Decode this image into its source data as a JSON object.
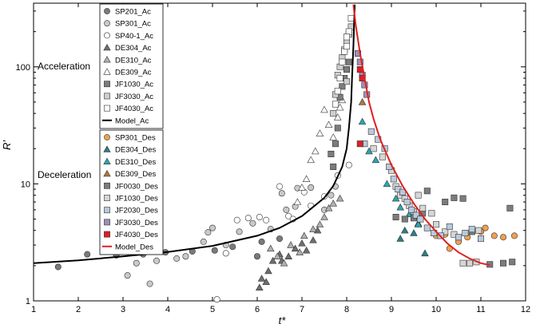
{
  "chart_data": {
    "type": "scatter",
    "title": "",
    "xlabel": "t*",
    "ylabel": "R'",
    "xlim": [
      1,
      12
    ],
    "ylim": [
      1,
      350
    ],
    "yscale": "log",
    "xticks": [
      1,
      2,
      3,
      4,
      5,
      6,
      7,
      8,
      9,
      10,
      11,
      12
    ],
    "yticks": [
      1,
      10,
      100
    ],
    "annotations": [
      "Acceleration",
      "Deceleration"
    ],
    "legend_position": "top-left",
    "legend_groups": [
      [
        "SP201_Ac",
        "SP301_Ac",
        "SP40-1_Ac",
        "DE304_Ac",
        "DE310_Ac",
        "DE309_Ac",
        "JF1030_Ac",
        "JF3030_Ac",
        "JF4030_Ac",
        "Model_Ac"
      ],
      [
        "SP301_Des",
        "DE304_Des",
        "DE310_Des",
        "DE309_Des",
        "JF0030_Des",
        "JF1030_Des",
        "JF2030_Des",
        "JF3030_Des",
        "JF4030_Des",
        "Model_Des"
      ]
    ],
    "series": [
      {
        "name": "SP201_Ac",
        "marker": "circle",
        "color": "#7a7a7a",
        "points": [
          [
            1.55,
            1.95
          ],
          [
            2.2,
            2.5
          ],
          [
            2.85,
            2.45
          ],
          [
            3.45,
            2.5
          ],
          [
            3.95,
            2.6
          ],
          [
            4.55,
            2.65
          ],
          [
            5.05,
            2.7
          ],
          [
            5.45,
            2.9
          ],
          [
            6.0,
            2.4
          ],
          [
            6.1,
            3.2
          ],
          [
            6.5,
            3.4
          ]
        ]
      },
      {
        "name": "SP301_Ac",
        "marker": "circle",
        "color": "#c9c9c9",
        "points": [
          [
            3.1,
            1.65
          ],
          [
            3.3,
            2.1
          ],
          [
            3.6,
            1.4
          ],
          [
            3.75,
            2.2
          ],
          [
            4.2,
            2.3
          ],
          [
            4.4,
            2.4
          ],
          [
            4.8,
            3.2
          ],
          [
            4.9,
            3.85
          ],
          [
            5.0,
            4.2
          ],
          [
            5.3,
            3.0
          ],
          [
            5.6,
            3.9
          ],
          [
            5.9,
            4.6
          ],
          [
            6.3,
            4.1
          ],
          [
            6.55,
            8.3
          ],
          [
            6.65,
            6.0
          ],
          [
            6.85,
            6.4
          ],
          [
            6.9,
            9.2
          ],
          [
            7.2,
            9.3
          ],
          [
            7.5,
            6.0
          ],
          [
            7.65,
            8.0
          ],
          [
            7.75,
            9.5
          ]
        ]
      },
      {
        "name": "SP40-1_Ac",
        "marker": "circle",
        "color": "#ffffff",
        "points": [
          [
            5.1,
            1.03
          ],
          [
            5.3,
            2.55
          ],
          [
            5.55,
            4.9
          ],
          [
            5.8,
            5.1
          ],
          [
            6.05,
            5.2
          ],
          [
            6.2,
            4.9
          ],
          [
            6.5,
            9.5
          ],
          [
            6.7,
            5.3
          ],
          [
            6.8,
            5.0
          ],
          [
            7.05,
            8.5
          ],
          [
            7.2,
            6.5
          ],
          [
            7.5,
            7.8
          ],
          [
            7.8,
            11.8
          ],
          [
            8.05,
            14.5
          ]
        ]
      },
      {
        "name": "DE304_Ac",
        "marker": "triangle",
        "color": "#6e6e6e",
        "points": [
          [
            6.05,
            1.3
          ],
          [
            6.1,
            1.55
          ],
          [
            6.2,
            1.45
          ],
          [
            6.25,
            1.8
          ],
          [
            6.35,
            2.2
          ],
          [
            6.5,
            2.5
          ],
          [
            6.55,
            2.2
          ],
          [
            6.7,
            2.4
          ],
          [
            6.85,
            2.8
          ],
          [
            7.0,
            3.1
          ],
          [
            7.1,
            2.7
          ],
          [
            7.25,
            3.3
          ],
          [
            7.35,
            4.0
          ]
        ]
      },
      {
        "name": "DE310_Ac",
        "marker": "triangle",
        "color": "#b0b0b0",
        "points": [
          [
            6.3,
            2.8
          ],
          [
            6.45,
            2.4
          ],
          [
            6.6,
            2.1
          ],
          [
            6.75,
            3.0
          ],
          [
            6.95,
            2.6
          ],
          [
            7.05,
            3.6
          ],
          [
            7.25,
            4.1
          ],
          [
            7.4,
            4.5
          ],
          [
            7.5,
            5.2
          ],
          [
            7.6,
            6.2
          ],
          [
            7.7,
            6.8
          ],
          [
            7.85,
            7.5
          ]
        ]
      },
      {
        "name": "DE309_Ac",
        "marker": "triangle",
        "color": "#ffffff",
        "points": [
          [
            6.9,
            7.0
          ],
          [
            7.0,
            9.3
          ],
          [
            7.1,
            11.0
          ],
          [
            7.2,
            16.0
          ],
          [
            7.3,
            19.0
          ],
          [
            7.4,
            27.0
          ],
          [
            7.5,
            43.0
          ],
          [
            7.6,
            32.0
          ],
          [
            7.7,
            25.0
          ],
          [
            7.8,
            37.0
          ],
          [
            7.85,
            45.0
          ],
          [
            7.9,
            52.0
          ]
        ]
      },
      {
        "name": "JF1030_Ac",
        "marker": "square",
        "color": "#7c7c7c",
        "points": [
          [
            7.65,
            18.0
          ],
          [
            7.7,
            14.0
          ],
          [
            7.75,
            22.0
          ],
          [
            7.8,
            30.0
          ],
          [
            7.85,
            55.0
          ],
          [
            7.9,
            68.0
          ],
          [
            7.95,
            80.0
          ],
          [
            8.0,
            95.0
          ],
          [
            8.05,
            110.0
          ]
        ]
      },
      {
        "name": "JF3030_Ac",
        "marker": "square",
        "color": "#cfcfcf",
        "points": [
          [
            7.7,
            40.0
          ],
          [
            7.75,
            58.0
          ],
          [
            7.8,
            85.0
          ],
          [
            7.85,
            100.0
          ],
          [
            7.9,
            120.0
          ],
          [
            7.95,
            140.0
          ],
          [
            8.0,
            165.0
          ],
          [
            8.05,
            190.0
          ],
          [
            8.1,
            220.0
          ],
          [
            8.0,
            75.0
          ]
        ]
      },
      {
        "name": "JF4030_Ac",
        "marker": "square",
        "color": "#ffffff",
        "points": [
          [
            7.75,
            48.0
          ],
          [
            7.8,
            62.0
          ],
          [
            7.85,
            80.0
          ],
          [
            7.9,
            110.0
          ],
          [
            7.95,
            135.0
          ],
          [
            8.0,
            150.0
          ],
          [
            8.05,
            200.0
          ],
          [
            8.1,
            260.0
          ],
          [
            8.0,
            180.0
          ]
        ]
      },
      {
        "name": "Model_Ac",
        "marker": "line",
        "color": "#000000",
        "points": [
          [
            1.0,
            2.1
          ],
          [
            2.0,
            2.22
          ],
          [
            3.0,
            2.4
          ],
          [
            4.0,
            2.62
          ],
          [
            5.0,
            2.95
          ],
          [
            6.0,
            3.6
          ],
          [
            6.5,
            4.2
          ],
          [
            7.0,
            5.3
          ],
          [
            7.5,
            7.6
          ],
          [
            7.7,
            9.6
          ],
          [
            7.9,
            14.0
          ],
          [
            8.0,
            20.0
          ],
          [
            8.05,
            30.0
          ],
          [
            8.1,
            50.0
          ],
          [
            8.12,
            80.0
          ],
          [
            8.15,
            150.0
          ],
          [
            8.17,
            260.0
          ],
          [
            8.18,
            340.0
          ]
        ]
      },
      {
        "name": "SP301_Des",
        "marker": "circle",
        "color": "#f0a050",
        "points": [
          [
            10.0,
            3.6
          ],
          [
            10.2,
            3.7
          ],
          [
            10.3,
            2.8
          ],
          [
            10.5,
            3.2
          ],
          [
            10.7,
            3.5
          ],
          [
            11.0,
            3.9
          ],
          [
            11.1,
            4.2
          ],
          [
            11.3,
            3.6
          ],
          [
            11.5,
            3.5
          ],
          [
            11.75,
            3.6
          ]
        ]
      },
      {
        "name": "DE304_Des",
        "marker": "triangle",
        "color": "#2a7f88",
        "points": [
          [
            9.2,
            3.4
          ],
          [
            9.3,
            4.0
          ],
          [
            9.5,
            3.8
          ],
          [
            9.6,
            4.6
          ],
          [
            9.75,
            2.55
          ]
        ]
      },
      {
        "name": "DE310_Des",
        "marker": "triangle",
        "color": "#2aa6b3",
        "points": [
          [
            8.35,
            34.0
          ],
          [
            8.5,
            19.0
          ],
          [
            8.65,
            16.0
          ],
          [
            8.9,
            10.0
          ],
          [
            9.1,
            7.5
          ],
          [
            9.2,
            6.3
          ],
          [
            9.4,
            5.5
          ],
          [
            9.6,
            4.5
          ]
        ]
      },
      {
        "name": "DE309_Des",
        "marker": "triangle",
        "color": "#b0743e",
        "points": [
          [
            8.35,
            50.0
          ]
        ]
      },
      {
        "name": "JF0030_Des",
        "marker": "square",
        "color": "#7c7c7c",
        "points": [
          [
            9.1,
            5.2
          ],
          [
            9.3,
            5.0
          ],
          [
            9.5,
            5.1
          ],
          [
            9.7,
            5.6
          ],
          [
            9.8,
            8.7
          ],
          [
            10.2,
            7.0
          ],
          [
            10.4,
            7.6
          ],
          [
            10.6,
            7.5
          ],
          [
            10.8,
            3.9
          ],
          [
            11.2,
            2.05
          ],
          [
            11.5,
            2.1
          ],
          [
            11.65,
            6.2
          ],
          [
            11.7,
            2.15
          ]
        ]
      },
      {
        "name": "JF1030_Des",
        "marker": "square",
        "color": "#d6d6d6",
        "points": [
          [
            8.6,
            20.0
          ],
          [
            8.8,
            17.0
          ],
          [
            9.0,
            13.0
          ],
          [
            9.1,
            9.5
          ],
          [
            9.2,
            8.0
          ],
          [
            9.3,
            7.5
          ],
          [
            9.4,
            6.5
          ],
          [
            9.5,
            5.8
          ],
          [
            9.6,
            8.0
          ],
          [
            9.7,
            6.2
          ],
          [
            9.9,
            5.6
          ],
          [
            10.0,
            4.5
          ],
          [
            10.2,
            3.9
          ],
          [
            10.4,
            3.7
          ],
          [
            10.6,
            2.1
          ],
          [
            10.75,
            2.1
          ],
          [
            10.9,
            2.15
          ],
          [
            10.95,
            4.0
          ]
        ]
      },
      {
        "name": "JF2030_Des",
        "marker": "square",
        "color": "#b9cadb",
        "points": [
          [
            8.4,
            22.0
          ],
          [
            8.55,
            28.0
          ],
          [
            8.7,
            24.0
          ],
          [
            8.85,
            20.0
          ],
          [
            8.95,
            14.0
          ],
          [
            9.05,
            11.0
          ],
          [
            9.15,
            9.0
          ],
          [
            9.25,
            8.5
          ],
          [
            9.35,
            7.0
          ],
          [
            9.45,
            6.0
          ],
          [
            9.55,
            5.4
          ],
          [
            9.65,
            5.0
          ],
          [
            9.8,
            4.2
          ],
          [
            9.95,
            3.8
          ],
          [
            10.1,
            3.6
          ],
          [
            10.3,
            4.3
          ],
          [
            10.5,
            3.5
          ],
          [
            10.65,
            3.8
          ],
          [
            10.8,
            4.1
          ],
          [
            11.0,
            3.4
          ]
        ]
      },
      {
        "name": "JF3030_Des",
        "marker": "square",
        "color": "#9d8fb8",
        "points": [
          [
            8.25,
            130.0
          ],
          [
            8.3,
            110.0
          ],
          [
            8.35,
            85.0
          ],
          [
            8.4,
            70.0
          ],
          [
            8.45,
            58.0
          ]
        ]
      },
      {
        "name": "JF4030_Des",
        "marker": "square",
        "color": "#dd1f26",
        "points": [
          [
            8.3,
            95.0
          ],
          [
            8.35,
            80.0
          ],
          [
            8.3,
            22.0
          ]
        ]
      },
      {
        "name": "Model_Des",
        "marker": "line",
        "color": "#e02020",
        "points": [
          [
            8.15,
            340.0
          ],
          [
            8.2,
            230.0
          ],
          [
            8.3,
            130.0
          ],
          [
            8.4,
            80.0
          ],
          [
            8.5,
            50.0
          ],
          [
            8.6,
            36.0
          ],
          [
            8.75,
            24.0
          ],
          [
            9.0,
            14.5
          ],
          [
            9.25,
            9.6
          ],
          [
            9.5,
            6.8
          ],
          [
            9.75,
            5.0
          ],
          [
            10.0,
            3.9
          ],
          [
            10.25,
            3.1
          ],
          [
            10.5,
            2.6
          ],
          [
            10.75,
            2.3
          ],
          [
            11.0,
            2.1
          ],
          [
            11.2,
            2.02
          ]
        ]
      }
    ]
  },
  "colors": {
    "axis": "#000000",
    "model_ac": "#000000",
    "model_des": "#e02020"
  }
}
